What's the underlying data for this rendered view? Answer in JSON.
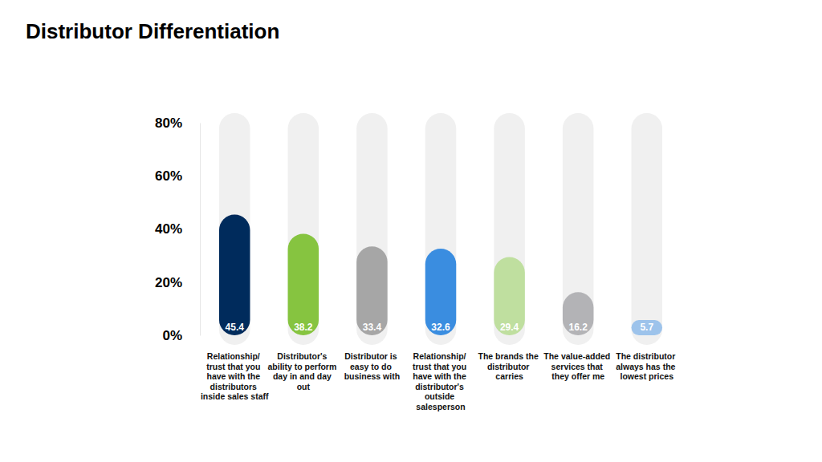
{
  "chart_data": {
    "type": "bar",
    "title": "Distributor Differentiation",
    "categories": [
      "Relationship/ trust that you have with the distributors inside sales staff",
      "Distributor's ability to perform day in and day out",
      "Distributor is easy to do business with",
      "Relationship/ trust that you have with the distributor's outside salesperson",
      "The brands the distributor carries",
      "The value-added services that they offer me",
      "The distributor always has the lowest prices"
    ],
    "values": [
      45.4,
      38.2,
      33.4,
      32.6,
      29.4,
      16.2,
      5.7
    ],
    "colors": [
      "#002b5c",
      "#86c440",
      "#a6a6a6",
      "#3a8de0",
      "#bfdf9f",
      "#b3b3b6",
      "#9dc3eb"
    ],
    "ylim": [
      0,
      80
    ],
    "yticks": [
      {
        "value": 0,
        "label": "0%"
      },
      {
        "value": 20,
        "label": "20%"
      },
      {
        "value": 40,
        "label": "40%"
      },
      {
        "value": 60,
        "label": "60%"
      },
      {
        "value": 80,
        "label": "80%"
      }
    ],
    "grid": false,
    "data_labels": true
  }
}
